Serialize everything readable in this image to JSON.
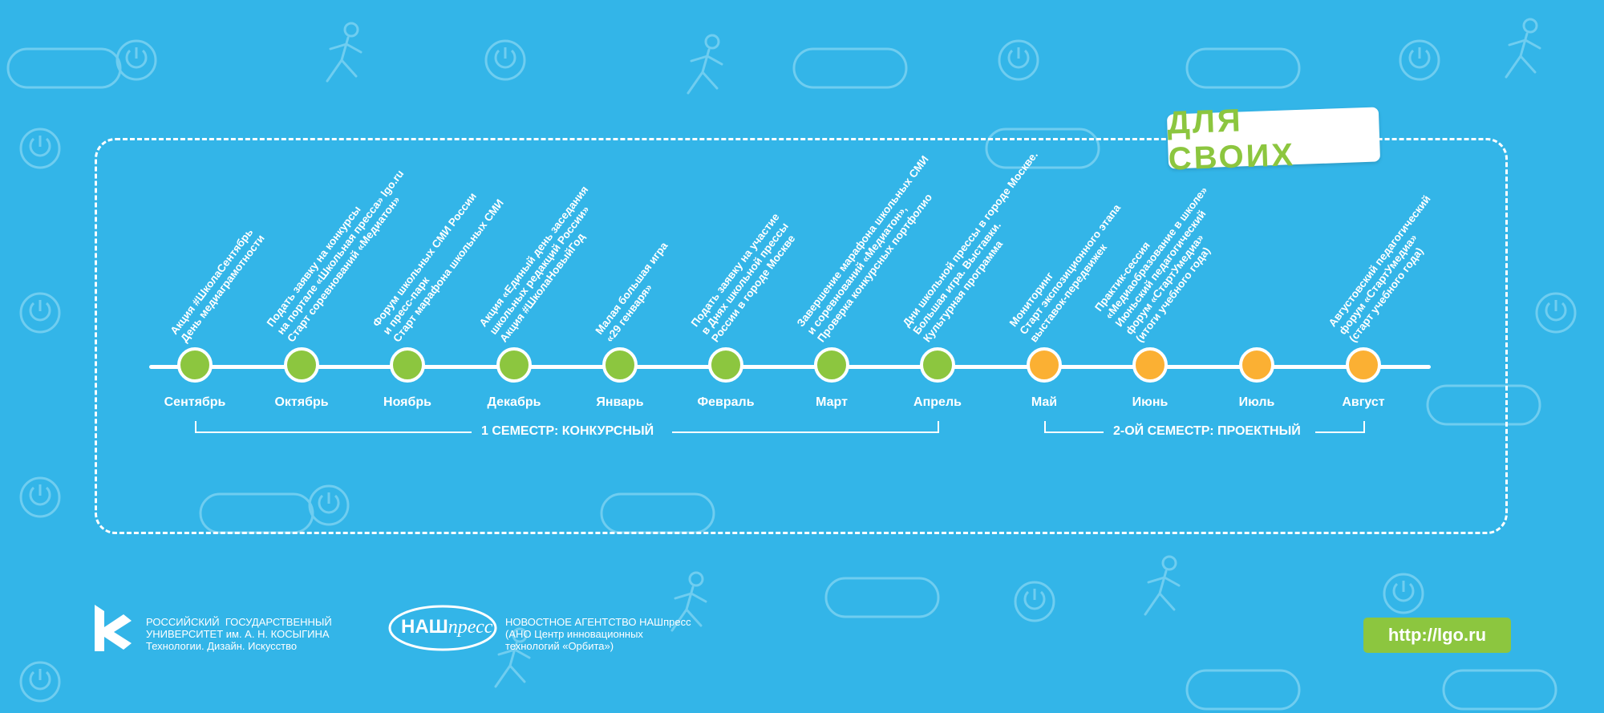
{
  "badge": "ДЛЯ СВОИХ",
  "months": [
    {
      "name": "Сентябрь",
      "color": "green",
      "event": "Акция #ШколаСентябрь\nДень медиаграмотности"
    },
    {
      "name": "Октябрь",
      "color": "green",
      "event": "Подать заявку на конкурсы\nна портале «Школьная пресса» lgo.ru\nСтарт соревнований «Медиатон»"
    },
    {
      "name": "Ноябрь",
      "color": "green",
      "event": "Форум школьных СМИ России\nи пресс-парк\nСтарт марафона школьных СМИ"
    },
    {
      "name": "Декабрь",
      "color": "green",
      "event": "Акция «Единый день заседания\nшкольных редакций России»\nАкция #ШколаНовыйГод"
    },
    {
      "name": "Январь",
      "color": "green",
      "event": "Малая большая игра\n«29 генваря»"
    },
    {
      "name": "Февраль",
      "color": "green",
      "event": "Подать заявку на участие\nв Днях школьной прессы\nРоссии в городе Москве"
    },
    {
      "name": "Март",
      "color": "green",
      "event": "Завершение марафона школьных СМИ\nи соревнований «Медиатон»,\nПроверка конкурсных портфолио"
    },
    {
      "name": "Апрель",
      "color": "green",
      "event": "Дни школьной прессы в городе Москве.\nБольшая игра. Выставки.\nКультурная программа"
    },
    {
      "name": "Май",
      "color": "orange",
      "event": "Мониторинг\nСтарт экспозиционного этапа\nвыставок-передвижек"
    },
    {
      "name": "Июнь",
      "color": "orange",
      "event": "Практик-сессия\n«Медиаобразование в школе»\nИюньский педагогический\nфорум «СтартУмедиа»\n(итоги учебного года)"
    },
    {
      "name": "Июль",
      "color": "orange",
      "event": ""
    },
    {
      "name": "Август",
      "color": "orange",
      "event": "Августовский педагогический\nфорум «СтартУмедиа»\n(старт учебного года)"
    }
  ],
  "semesters": [
    {
      "label": "1 СЕМЕСТР: КОНКУРСНЫЙ"
    },
    {
      "label": "2-ОЙ СЕМЕСТР: ПРОЕКТНЫЙ"
    }
  ],
  "footer": {
    "university": "РОССИЙСКИЙ  ГОСУДАРСТВЕННЫЙ\nУНИВЕРСИТЕТ им. А. Н. КОСЫГИНА\nТехнологии. Дизайн. Искусство",
    "press_logo_a": "НАШ",
    "press_logo_b": "пресс",
    "agency": "НОВОСТНОЕ АГЕНТСТВО НАШпресс\n(АНО Центр инновационных\nтехнологий «Орбита»)",
    "url": "http://lgo.ru"
  },
  "colors": {
    "background": "#33b5e8",
    "green": "#8cc63f",
    "orange": "#fbb033"
  }
}
